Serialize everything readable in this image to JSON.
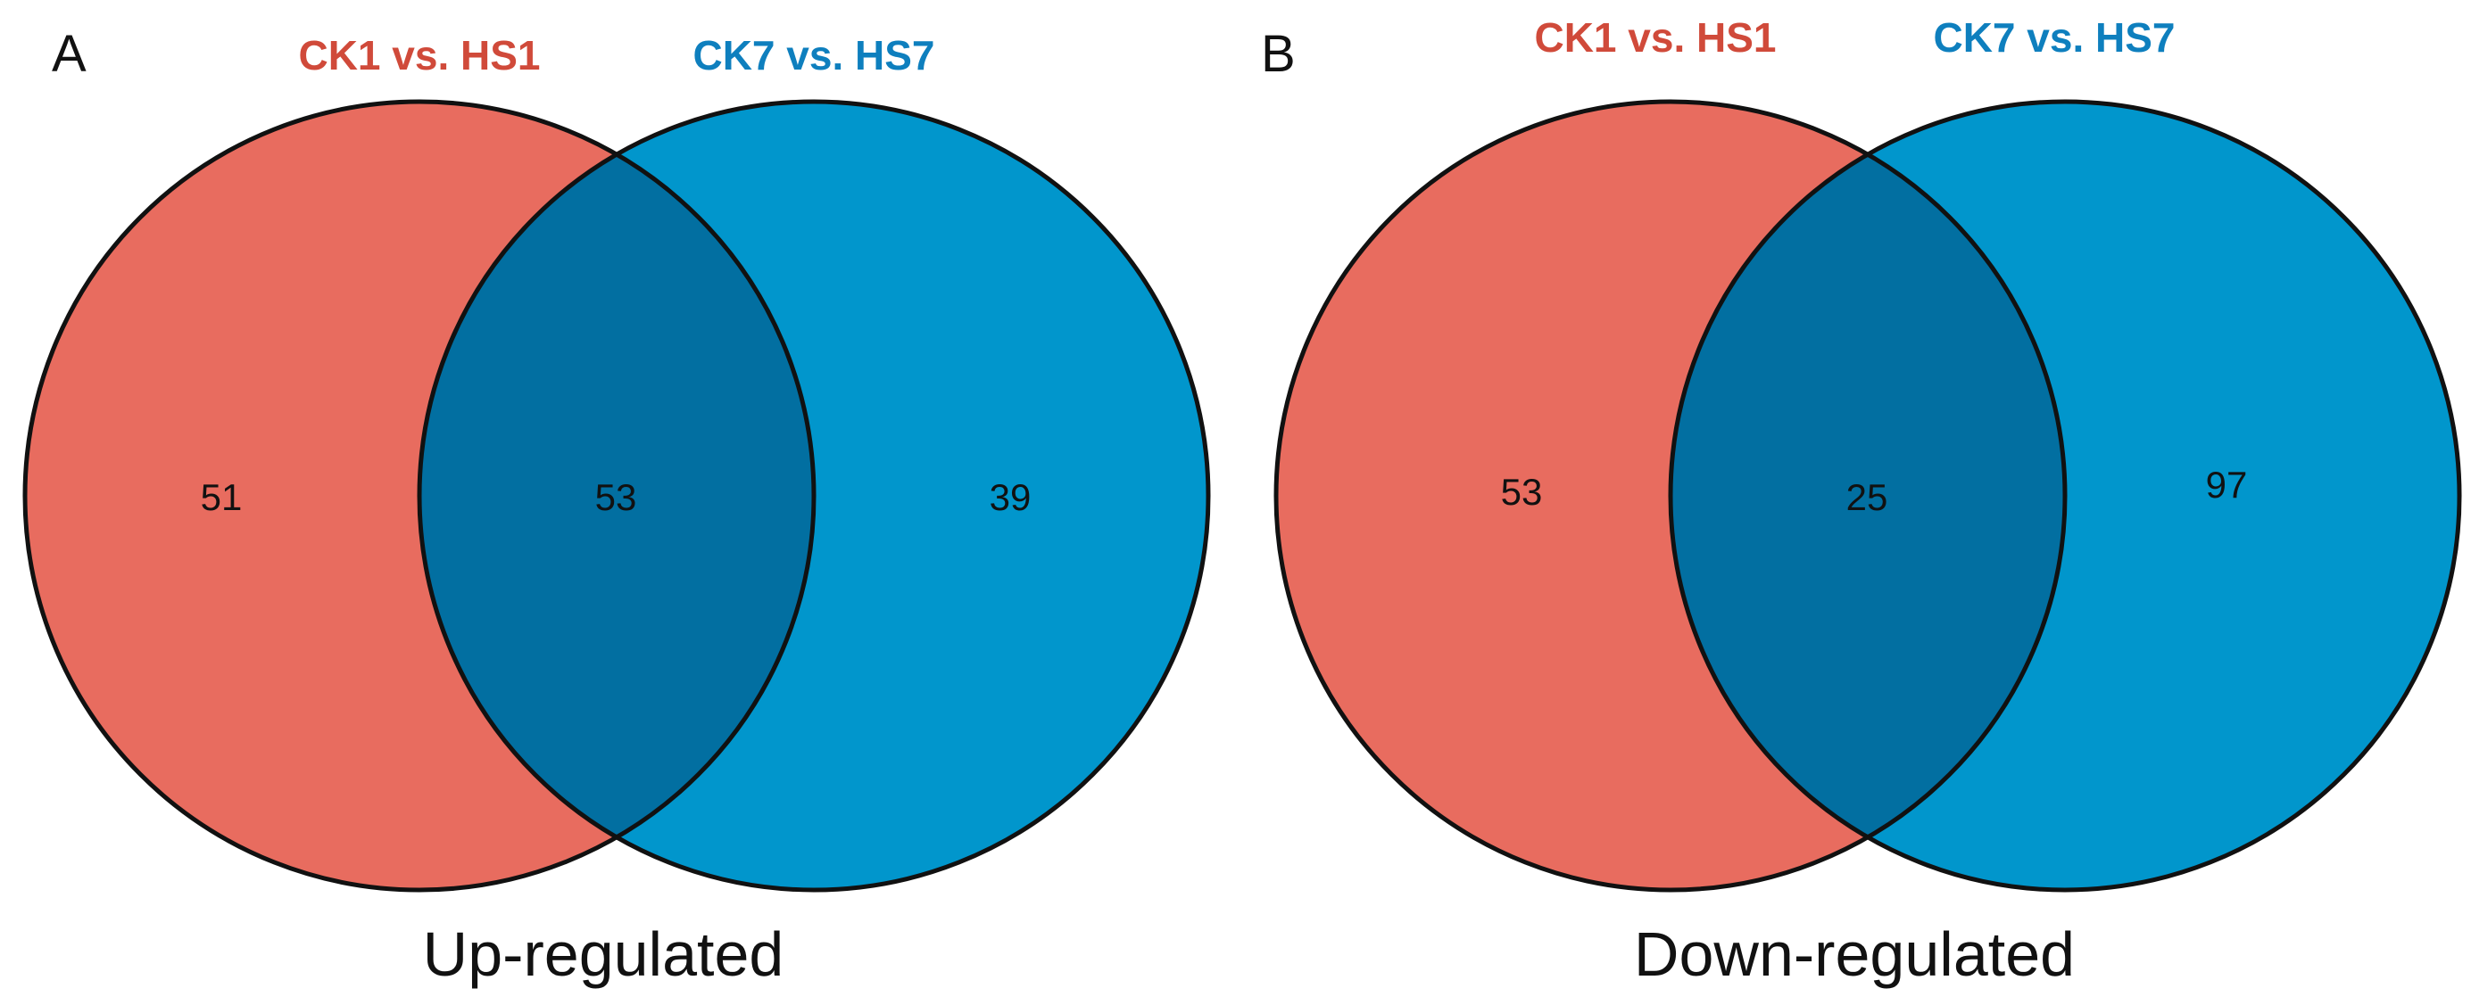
{
  "chart_data": [
    {
      "type": "venn",
      "panel": "A",
      "title": "Up-regulated",
      "sets": [
        {
          "name": "CK1 vs. HS1",
          "color": "#E86C5F",
          "label_color": "#D04A3A",
          "only": 51
        },
        {
          "name": "CK7 vs. HS7",
          "color": "#0196CC",
          "label_color": "#0E7FBE",
          "only": 39
        }
      ],
      "intersection": 53,
      "intersection_color": "#026FA1"
    },
    {
      "type": "venn",
      "panel": "B",
      "title": "Down-regulated",
      "sets": [
        {
          "name": "CK1 vs. HS1",
          "color": "#E86C5F",
          "label_color": "#D04A3A",
          "only": 53
        },
        {
          "name": "CK7 vs. HS7",
          "color": "#0196CC",
          "label_color": "#0E7FBE",
          "only": 97
        }
      ],
      "intersection": 25,
      "intersection_color": "#026FA1"
    }
  ]
}
